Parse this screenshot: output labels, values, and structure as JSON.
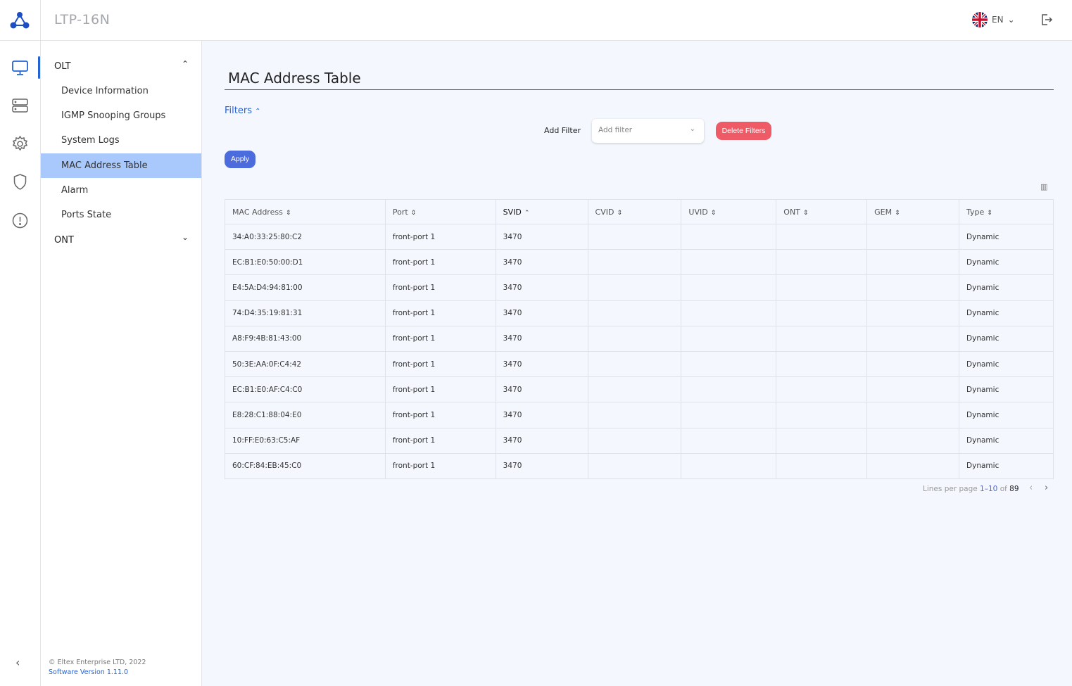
{
  "header": {
    "title": "LTP-16N",
    "language": "EN"
  },
  "rail": {
    "icons": [
      "monitor-icon",
      "server-icon",
      "gear-icon",
      "shield-icon",
      "alert-icon"
    ]
  },
  "sidebar": {
    "groups": [
      {
        "label": "OLT",
        "expanded": true
      },
      {
        "label": "ONT",
        "expanded": false
      }
    ],
    "items": [
      "Device Information",
      "IGMP Snooping Groups",
      "System Logs",
      "MAC Address Table",
      "Alarm",
      "Ports State"
    ],
    "active": "MAC Address Table",
    "copyright": "© Eltex Enterprise LTD, 2022",
    "version": "Software Version 1.11.0"
  },
  "main": {
    "title": "MAC Address Table",
    "filters_label": "Filters",
    "add_filter_label": "Add Filter",
    "add_filter_placeholder": "Add filter",
    "delete_filters": "Delete Filters",
    "apply": "Apply",
    "table": {
      "columns": [
        "MAC Address",
        "Port",
        "SVID",
        "CVID",
        "UVID",
        "ONT",
        "GEM",
        "Type"
      ],
      "sorted_column": "SVID",
      "rows": [
        [
          "34:A0:33:25:80:C2",
          "front-port 1",
          "3470",
          "",
          "",
          "",
          "",
          "Dynamic"
        ],
        [
          "EC:B1:E0:50:00:D1",
          "front-port 1",
          "3470",
          "",
          "",
          "",
          "",
          "Dynamic"
        ],
        [
          "E4:5A:D4:94:81:00",
          "front-port 1",
          "3470",
          "",
          "",
          "",
          "",
          "Dynamic"
        ],
        [
          "74:D4:35:19:81:31",
          "front-port 1",
          "3470",
          "",
          "",
          "",
          "",
          "Dynamic"
        ],
        [
          "A8:F9:4B:81:43:00",
          "front-port 1",
          "3470",
          "",
          "",
          "",
          "",
          "Dynamic"
        ],
        [
          "50:3E:AA:0F:C4:42",
          "front-port 1",
          "3470",
          "",
          "",
          "",
          "",
          "Dynamic"
        ],
        [
          "EC:B1:E0:AF:C4:C0",
          "front-port 1",
          "3470",
          "",
          "",
          "",
          "",
          "Dynamic"
        ],
        [
          "E8:28:C1:88:04:E0",
          "front-port 1",
          "3470",
          "",
          "",
          "",
          "",
          "Dynamic"
        ],
        [
          "10:FF:E0:63:C5:AF",
          "front-port 1",
          "3470",
          "",
          "",
          "",
          "",
          "Dynamic"
        ],
        [
          "60:CF:84:EB:45:C0",
          "front-port 1",
          "3470",
          "",
          "",
          "",
          "",
          "Dynamic"
        ]
      ]
    },
    "pagination": {
      "lines_per_page_label": "Lines per page",
      "range": "1–10",
      "of_label": "of",
      "total": "89"
    }
  },
  "colors": {
    "accent": "#2463d4",
    "active_item": "#a9c8fb",
    "danger": "#ef5a67",
    "apply": "#4c6bdc"
  }
}
